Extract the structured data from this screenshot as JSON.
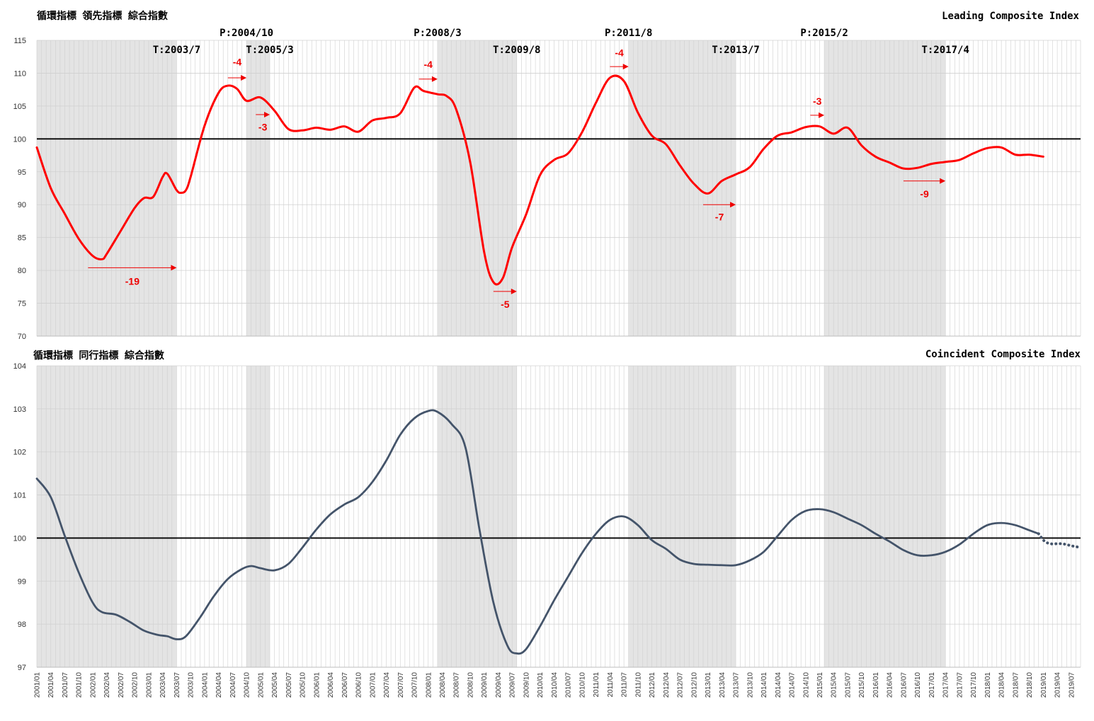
{
  "chart_data": [
    {
      "type": "line",
      "title_left": "循環指標 領先指標 綜合指數",
      "title_right": "Leading Composite Index",
      "ylim": [
        70,
        115
      ],
      "yticks": [
        70,
        75,
        80,
        85,
        90,
        95,
        100,
        105,
        110,
        115
      ],
      "xlim": [
        "2001/01",
        "2019/09"
      ],
      "reference_line": 100,
      "grid": "vertical-monthly",
      "line_color": "#ff0000",
      "shaded_periods": [
        [
          "2001/01",
          "2003/07"
        ],
        [
          "2004/10",
          "2005/03"
        ],
        [
          "2008/03",
          "2009/08"
        ],
        [
          "2011/08",
          "2013/07"
        ],
        [
          "2015/02",
          "2017/04"
        ]
      ],
      "turning_points": [
        {
          "label": "T:2003/7",
          "date": "2003/07",
          "row": 2
        },
        {
          "label": "P:2004/10",
          "date": "2004/10",
          "row": 1
        },
        {
          "label": "T:2005/3",
          "date": "2005/03",
          "row": 2
        },
        {
          "label": "P:2008/3",
          "date": "2008/03",
          "row": 1
        },
        {
          "label": "T:2009/8",
          "date": "2009/08",
          "row": 2
        },
        {
          "label": "P:2011/8",
          "date": "2011/08",
          "row": 1
        },
        {
          "label": "T:2013/7",
          "date": "2013/07",
          "row": 2
        },
        {
          "label": "P:2015/2",
          "date": "2015/02",
          "row": 1
        },
        {
          "label": "T:2017/4",
          "date": "2017/04",
          "row": 2
        }
      ],
      "lead_annotations": [
        {
          "label": "-19",
          "from": "2001/12",
          "to": "2003/07",
          "arrow_y": 80.4,
          "label_y": 77.8
        },
        {
          "label": "-4",
          "from": "2004/06",
          "to": "2004/10",
          "arrow_y": 109.3,
          "label_y": 111.2
        },
        {
          "label": "-3",
          "from": "2004/12",
          "to": "2005/03",
          "arrow_y": 103.7,
          "label_y": 101.3
        },
        {
          "label": "-4",
          "from": "2007/11",
          "to": "2008/03",
          "arrow_y": 109.1,
          "label_y": 110.8
        },
        {
          "label": "-5",
          "from": "2009/03",
          "to": "2009/08",
          "arrow_y": 76.8,
          "label_y": 74.3
        },
        {
          "label": "-4",
          "from": "2011/04",
          "to": "2011/08",
          "arrow_y": 111.0,
          "label_y": 112.6
        },
        {
          "label": "-7",
          "from": "2012/12",
          "to": "2013/07",
          "arrow_y": 90.0,
          "label_y": 87.6
        },
        {
          "label": "-3",
          "from": "2014/11",
          "to": "2015/02",
          "arrow_y": 103.6,
          "label_y": 105.2
        },
        {
          "label": "-9",
          "from": "2016/07",
          "to": "2017/04",
          "arrow_y": 93.6,
          "label_y": 91.1
        }
      ],
      "series": [
        {
          "points": [
            [
              "2001/01",
              98.7
            ],
            [
              "2001/04",
              92.5
            ],
            [
              "2001/07",
              88.6
            ],
            [
              "2001/10",
              84.8
            ],
            [
              "2002/01",
              82.2
            ],
            [
              "2002/03",
              81.7
            ],
            [
              "2002/04",
              82.5
            ],
            [
              "2002/07",
              86.0
            ],
            [
              "2002/10",
              89.5
            ],
            [
              "2002/12",
              91.0
            ],
            [
              "2003/02",
              91.2
            ],
            [
              "2003/04",
              94.2
            ],
            [
              "2003/05",
              94.7
            ],
            [
              "2003/07",
              92.2
            ],
            [
              "2003/08",
              91.8
            ],
            [
              "2003/09",
              92.2
            ],
            [
              "2003/10",
              94.2
            ],
            [
              "2004/01",
              102.0
            ],
            [
              "2004/04",
              107.0
            ],
            [
              "2004/06",
              108.1
            ],
            [
              "2004/08",
              107.6
            ],
            [
              "2004/10",
              105.8
            ],
            [
              "2005/01",
              106.3
            ],
            [
              "2005/04",
              104.3
            ],
            [
              "2005/07",
              101.5
            ],
            [
              "2005/10",
              101.3
            ],
            [
              "2006/01",
              101.7
            ],
            [
              "2006/04",
              101.4
            ],
            [
              "2006/07",
              101.9
            ],
            [
              "2006/10",
              101.1
            ],
            [
              "2007/01",
              102.8
            ],
            [
              "2007/04",
              103.2
            ],
            [
              "2007/07",
              103.9
            ],
            [
              "2007/10",
              107.8
            ],
            [
              "2007/12",
              107.3
            ],
            [
              "2008/03",
              106.8
            ],
            [
              "2008/05",
              106.5
            ],
            [
              "2008/07",
              104.5
            ],
            [
              "2008/10",
              96.5
            ],
            [
              "2009/01",
              82.8
            ],
            [
              "2009/03",
              78.2
            ],
            [
              "2009/05",
              78.8
            ],
            [
              "2009/07",
              83.5
            ],
            [
              "2009/10",
              88.5
            ],
            [
              "2010/01",
              94.5
            ],
            [
              "2010/04",
              96.8
            ],
            [
              "2010/07",
              97.8
            ],
            [
              "2010/10",
              101.0
            ],
            [
              "2011/01",
              105.5
            ],
            [
              "2011/04",
              109.3
            ],
            [
              "2011/07",
              108.8
            ],
            [
              "2011/10",
              104.0
            ],
            [
              "2012/01",
              100.5
            ],
            [
              "2012/04",
              99.2
            ],
            [
              "2012/07",
              96.0
            ],
            [
              "2012/10",
              93.2
            ],
            [
              "2013/01",
              91.7
            ],
            [
              "2013/04",
              93.6
            ],
            [
              "2013/07",
              94.6
            ],
            [
              "2013/10",
              95.7
            ],
            [
              "2014/01",
              98.5
            ],
            [
              "2014/04",
              100.5
            ],
            [
              "2014/07",
              101.0
            ],
            [
              "2014/10",
              101.8
            ],
            [
              "2015/01",
              101.9
            ],
            [
              "2015/04",
              100.8
            ],
            [
              "2015/07",
              101.7
            ],
            [
              "2015/10",
              99.0
            ],
            [
              "2016/01",
              97.3
            ],
            [
              "2016/04",
              96.4
            ],
            [
              "2016/07",
              95.5
            ],
            [
              "2016/10",
              95.6
            ],
            [
              "2017/01",
              96.2
            ],
            [
              "2017/04",
              96.5
            ],
            [
              "2017/07",
              96.8
            ],
            [
              "2017/10",
              97.8
            ],
            [
              "2018/01",
              98.6
            ],
            [
              "2018/04",
              98.7
            ],
            [
              "2018/07",
              97.6
            ],
            [
              "2018/10",
              97.6
            ],
            [
              "2019/01",
              97.3
            ]
          ]
        }
      ]
    },
    {
      "type": "line",
      "title_left": "循環指標 同行指標 綜合指數",
      "title_right": "Coincident Composite Index",
      "ylim": [
        97,
        104
      ],
      "yticks": [
        97,
        98,
        99,
        100,
        101,
        102,
        103,
        104
      ],
      "xlim": [
        "2001/01",
        "2019/09"
      ],
      "reference_line": 100,
      "grid": "vertical-monthly",
      "line_color": "#44546a",
      "shaded_periods": [
        [
          "2001/01",
          "2003/07"
        ],
        [
          "2004/10",
          "2005/03"
        ],
        [
          "2008/03",
          "2009/08"
        ],
        [
          "2011/08",
          "2013/07"
        ],
        [
          "2015/02",
          "2017/04"
        ]
      ],
      "xticks": [
        "2001/01",
        "2001/04",
        "2001/07",
        "2001/10",
        "2002/01",
        "2002/04",
        "2002/07",
        "2002/10",
        "2003/01",
        "2003/04",
        "2003/07",
        "2003/10",
        "2004/01",
        "2004/04",
        "2004/07",
        "2004/10",
        "2005/01",
        "2005/04",
        "2005/07",
        "2005/10",
        "2006/01",
        "2006/04",
        "2006/07",
        "2006/10",
        "2007/01",
        "2007/04",
        "2007/07",
        "2007/10",
        "2008/01",
        "2008/04",
        "2008/07",
        "2008/10",
        "2009/01",
        "2009/04",
        "2009/07",
        "2009/10",
        "2010/01",
        "2010/04",
        "2010/07",
        "2010/10",
        "2011/01",
        "2011/04",
        "2011/07",
        "2011/10",
        "2012/01",
        "2012/04",
        "2012/07",
        "2012/10",
        "2013/01",
        "2013/04",
        "2013/07",
        "2013/10",
        "2014/01",
        "2014/04",
        "2014/07",
        "2014/10",
        "2015/01",
        "2015/04",
        "2015/07",
        "2015/10",
        "2016/01",
        "2016/04",
        "2016/07",
        "2016/10",
        "2017/01",
        "2017/04",
        "2017/07",
        "2017/10",
        "2018/01",
        "2018/04",
        "2018/07",
        "2018/10",
        "2019/01",
        "2019/04",
        "2019/07"
      ],
      "series": [
        {
          "points": [
            [
              "2001/01",
              101.38
            ],
            [
              "2001/04",
              100.95
            ],
            [
              "2001/07",
              100.05
            ],
            [
              "2001/10",
              99.2
            ],
            [
              "2002/01",
              98.5
            ],
            [
              "2002/03",
              98.28
            ],
            [
              "2002/06",
              98.22
            ],
            [
              "2002/09",
              98.05
            ],
            [
              "2002/12",
              97.85
            ],
            [
              "2003/03",
              97.75
            ],
            [
              "2003/05",
              97.72
            ],
            [
              "2003/07",
              97.65
            ],
            [
              "2003/09",
              97.72
            ],
            [
              "2003/12",
              98.15
            ],
            [
              "2004/03",
              98.65
            ],
            [
              "2004/06",
              99.05
            ],
            [
              "2004/09",
              99.28
            ],
            [
              "2004/11",
              99.35
            ],
            [
              "2005/01",
              99.3
            ],
            [
              "2005/04",
              99.25
            ],
            [
              "2005/07",
              99.4
            ],
            [
              "2005/10",
              99.78
            ],
            [
              "2006/01",
              100.2
            ],
            [
              "2006/04",
              100.55
            ],
            [
              "2006/07",
              100.78
            ],
            [
              "2006/10",
              100.95
            ],
            [
              "2007/01",
              101.3
            ],
            [
              "2007/04",
              101.8
            ],
            [
              "2007/07",
              102.4
            ],
            [
              "2007/10",
              102.78
            ],
            [
              "2008/01",
              102.95
            ],
            [
              "2008/03",
              102.93
            ],
            [
              "2008/06",
              102.65
            ],
            [
              "2008/09",
              102.1
            ],
            [
              "2008/12",
              100.2
            ],
            [
              "2009/03",
              98.5
            ],
            [
              "2009/06",
              97.5
            ],
            [
              "2009/08",
              97.32
            ],
            [
              "2009/10",
              97.42
            ],
            [
              "2010/01",
              97.95
            ],
            [
              "2010/04",
              98.55
            ],
            [
              "2010/07",
              99.1
            ],
            [
              "2010/10",
              99.65
            ],
            [
              "2011/01",
              100.1
            ],
            [
              "2011/04",
              100.42
            ],
            [
              "2011/07",
              100.5
            ],
            [
              "2011/10",
              100.3
            ],
            [
              "2012/01",
              99.95
            ],
            [
              "2012/04",
              99.75
            ],
            [
              "2012/07",
              99.5
            ],
            [
              "2012/10",
              99.4
            ],
            [
              "2013/01",
              99.38
            ],
            [
              "2013/04",
              99.37
            ],
            [
              "2013/07",
              99.37
            ],
            [
              "2013/10",
              99.48
            ],
            [
              "2014/01",
              99.68
            ],
            [
              "2014/04",
              100.05
            ],
            [
              "2014/07",
              100.42
            ],
            [
              "2014/10",
              100.63
            ],
            [
              "2015/01",
              100.67
            ],
            [
              "2015/04",
              100.6
            ],
            [
              "2015/07",
              100.45
            ],
            [
              "2015/10",
              100.3
            ],
            [
              "2016/01",
              100.1
            ],
            [
              "2016/04",
              99.92
            ],
            [
              "2016/07",
              99.72
            ],
            [
              "2016/10",
              99.6
            ],
            [
              "2017/01",
              99.6
            ],
            [
              "2017/04",
              99.68
            ],
            [
              "2017/07",
              99.85
            ],
            [
              "2017/10",
              100.1
            ],
            [
              "2018/01",
              100.3
            ],
            [
              "2018/04",
              100.35
            ],
            [
              "2018/07",
              100.3
            ],
            [
              "2018/10",
              100.18
            ],
            [
              "2018/12",
              100.1
            ]
          ]
        },
        {
          "style": "dotted",
          "points": [
            [
              "2018/12",
              100.1
            ],
            [
              "2019/01",
              99.95
            ],
            [
              "2019/02",
              99.88
            ],
            [
              "2019/03",
              99.86
            ],
            [
              "2019/04",
              99.87
            ],
            [
              "2019/05",
              99.87
            ],
            [
              "2019/06",
              99.85
            ],
            [
              "2019/07",
              99.82
            ],
            [
              "2019/08",
              99.8
            ],
            [
              "2019/09",
              99.78
            ]
          ]
        }
      ]
    }
  ]
}
